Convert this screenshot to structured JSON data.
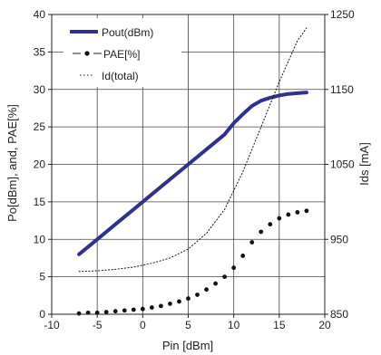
{
  "chart_data": {
    "type": "line",
    "xlabel": "Pin [dBm]",
    "ylabel": "Po[dBm], and, PAE[%]",
    "y2label": "Ids [mA]",
    "xlim": [
      -10,
      20
    ],
    "ylim": [
      0,
      40
    ],
    "y2lim": [
      850,
      1250
    ],
    "xticks": [
      "-10",
      "-5",
      "0",
      "5",
      "10",
      "15",
      "20"
    ],
    "yticks": [
      "0",
      "5",
      "10",
      "15",
      "20",
      "25",
      "30",
      "35",
      "40"
    ],
    "y2ticks": [
      "850",
      "950",
      "1050",
      "1150",
      "1250"
    ],
    "grid": true,
    "legend_position": "top-left",
    "series": [
      {
        "name": "Pout(dBm)",
        "axis": "left",
        "style": "solid",
        "color": "#2e3192",
        "x": [
          -7,
          -5,
          -3,
          -1,
          1,
          3,
          5,
          7,
          9,
          10,
          11,
          12,
          13,
          14,
          15,
          16,
          17,
          18
        ],
        "values": [
          8.0,
          10.0,
          12.0,
          14.0,
          16.0,
          18.0,
          20.0,
          22.0,
          24.0,
          25.5,
          26.7,
          27.8,
          28.5,
          28.9,
          29.2,
          29.4,
          29.5,
          29.6
        ]
      },
      {
        "name": "PAE[%]",
        "axis": "left",
        "style": "dots",
        "color": "#111111",
        "x": [
          -7,
          -6,
          -5,
          -4,
          -3,
          -2,
          -1,
          0,
          1,
          2,
          3,
          4,
          5,
          6,
          7,
          8,
          9,
          10,
          11,
          12,
          13,
          14,
          15,
          16,
          17,
          18
        ],
        "values": [
          0.1,
          0.2,
          0.2,
          0.3,
          0.4,
          0.5,
          0.6,
          0.7,
          0.9,
          1.1,
          1.4,
          1.7,
          2.1,
          2.6,
          3.3,
          4.1,
          5.0,
          6.2,
          7.8,
          9.6,
          11.0,
          12.0,
          12.8,
          13.3,
          13.6,
          13.8
        ]
      },
      {
        "name": "Id(total)",
        "axis": "right",
        "style": "dotted",
        "color": "#111111",
        "x": [
          -7,
          -5,
          -3,
          -1,
          1,
          3,
          5,
          7,
          9,
          11,
          13,
          15,
          17,
          18
        ],
        "values": [
          907,
          908,
          910,
          913,
          918,
          925,
          937,
          958,
          990,
          1040,
          1100,
          1160,
          1215,
          1232
        ]
      }
    ]
  }
}
